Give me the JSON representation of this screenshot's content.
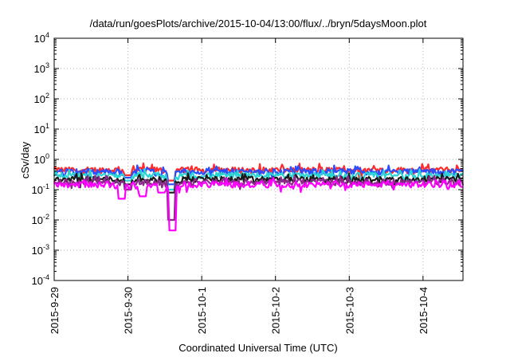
{
  "chart_data": {
    "type": "line",
    "title": "/data/run/goesPlots/archive/2015-10-04/13:00/flux/../bryn/5daysMoon.plot",
    "xlabel": "Coordinated Universal Time (UTC)",
    "ylabel": "cSv/day",
    "yscale": "log",
    "ylim": [
      0.0001,
      10000
    ],
    "xlim": [
      "2015-09-29T00:00",
      "2015-10-04T13:00"
    ],
    "grid": true,
    "x_ticks": [
      {
        "label": "2015-9-29",
        "at": "2015-09-29T00:00"
      },
      {
        "label": "2015-9-30",
        "at": "2015-09-30T00:00"
      },
      {
        "label": "2015-10-1",
        "at": "2015-10-01T00:00"
      },
      {
        "label": "2015-10-2",
        "at": "2015-10-02T00:00"
      },
      {
        "label": "2015-10-3",
        "at": "2015-10-03T00:00"
      },
      {
        "label": "2015-10-4",
        "at": "2015-10-04T00:00"
      }
    ],
    "y_ticks": [
      {
        "base": "10",
        "exp": "4",
        "value": 10000
      },
      {
        "base": "10",
        "exp": "3",
        "value": 1000
      },
      {
        "base": "10",
        "exp": "2",
        "value": 100
      },
      {
        "base": "10",
        "exp": "1",
        "value": 10
      },
      {
        "base": "10",
        "exp": "0",
        "value": 1
      },
      {
        "base": "10",
        "exp": "-1",
        "value": 0.1
      },
      {
        "base": "10",
        "exp": "-2",
        "value": 0.01
      },
      {
        "base": "10",
        "exp": "-3",
        "value": 0.001
      },
      {
        "base": "10",
        "exp": "-4",
        "value": 0.0001
      }
    ],
    "series": [
      {
        "color": "#ff2a2a",
        "level": 0.45,
        "dips": [
          [
            "2015-09-30T14:00",
            0.2
          ],
          [
            "2015-09-30T00:00",
            0.3
          ]
        ]
      },
      {
        "color": "#2a4dff",
        "level": 0.4,
        "dips": [
          [
            "2015-09-30T14:00",
            0.15
          ],
          [
            "2015-09-30T00:00",
            0.25
          ]
        ]
      },
      {
        "color": "#2ad4d4",
        "level": 0.3,
        "dips": [
          [
            "2015-09-30T14:00",
            0.1
          ],
          [
            "2015-09-30T00:00",
            0.2
          ]
        ]
      },
      {
        "color": "#1a1a1a",
        "level": 0.22,
        "dips": [
          [
            "2015-09-30T14:00",
            0.08
          ],
          [
            "2015-09-30T00:00",
            0.15
          ]
        ]
      },
      {
        "color": "#8a2a8a",
        "level": 0.18,
        "dips": [
          [
            "2015-09-30T14:00",
            0.01
          ],
          [
            "2015-09-30T00:00",
            0.1
          ]
        ]
      },
      {
        "color": "#ff00ff",
        "level": 0.15,
        "dips": [
          [
            "2015-09-30T14:30",
            0.0045
          ],
          [
            "2015-09-29T22:00",
            0.05
          ],
          [
            "2015-09-30T05:00",
            0.06
          ],
          [
            "2015-09-30T11:00",
            0.08
          ]
        ]
      }
    ]
  }
}
